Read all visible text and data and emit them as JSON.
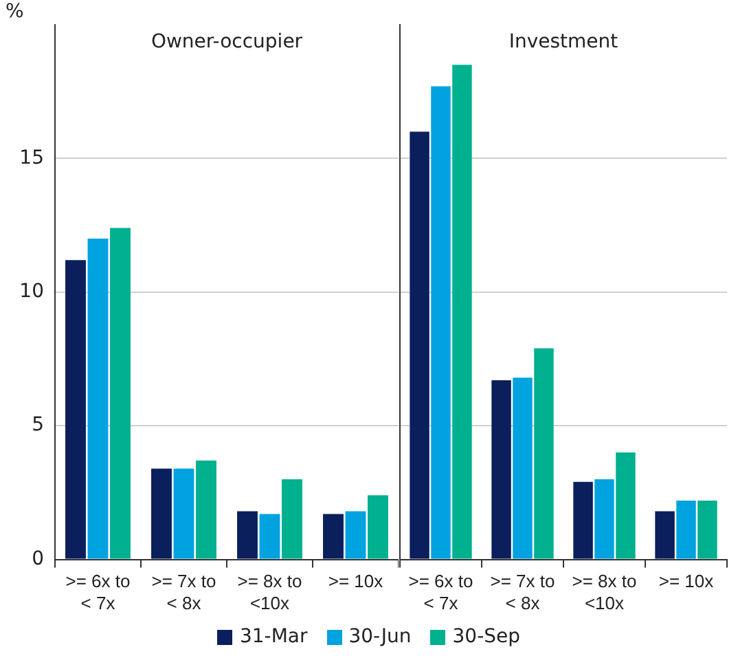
{
  "chart_data": [
    {
      "type": "bar",
      "title": "Owner-occupier",
      "ylabel": "%",
      "categories": [
        ">= 6x to < 7x",
        ">= 7x to < 8x",
        ">= 8x to <10x",
        ">= 10x"
      ],
      "series": [
        {
          "name": "31-Mar",
          "color": "#0a1f5c",
          "values": [
            11.2,
            3.4,
            1.8,
            1.7
          ]
        },
        {
          "name": "30-Jun",
          "color": "#00a3e0",
          "values": [
            12.0,
            3.4,
            1.7,
            1.8
          ]
        },
        {
          "name": "30-Sep",
          "color": "#00b08f",
          "values": [
            12.4,
            3.7,
            3.0,
            2.4
          ]
        }
      ],
      "ylim": [
        0,
        20
      ],
      "yticks": [
        0,
        5,
        10,
        15
      ],
      "grid": "y",
      "legend": "bottom"
    },
    {
      "type": "bar",
      "title": "Investment",
      "categories": [
        ">= 6x to < 7x",
        ">= 7x to < 8x",
        ">= 8x to <10x",
        ">= 10x"
      ],
      "series": [
        {
          "name": "31-Mar",
          "color": "#0a1f5c",
          "values": [
            16.0,
            6.7,
            2.9,
            1.8
          ]
        },
        {
          "name": "30-Jun",
          "color": "#00a3e0",
          "values": [
            17.7,
            6.8,
            3.0,
            2.2
          ]
        },
        {
          "name": "30-Sep",
          "color": "#00b08f",
          "values": [
            18.5,
            7.9,
            4.0,
            2.2
          ]
        }
      ],
      "ylim": [
        0,
        20
      ],
      "yticks": [
        0,
        5,
        10,
        15
      ],
      "grid": "y",
      "tick_labels": "x"
    }
  ]
}
